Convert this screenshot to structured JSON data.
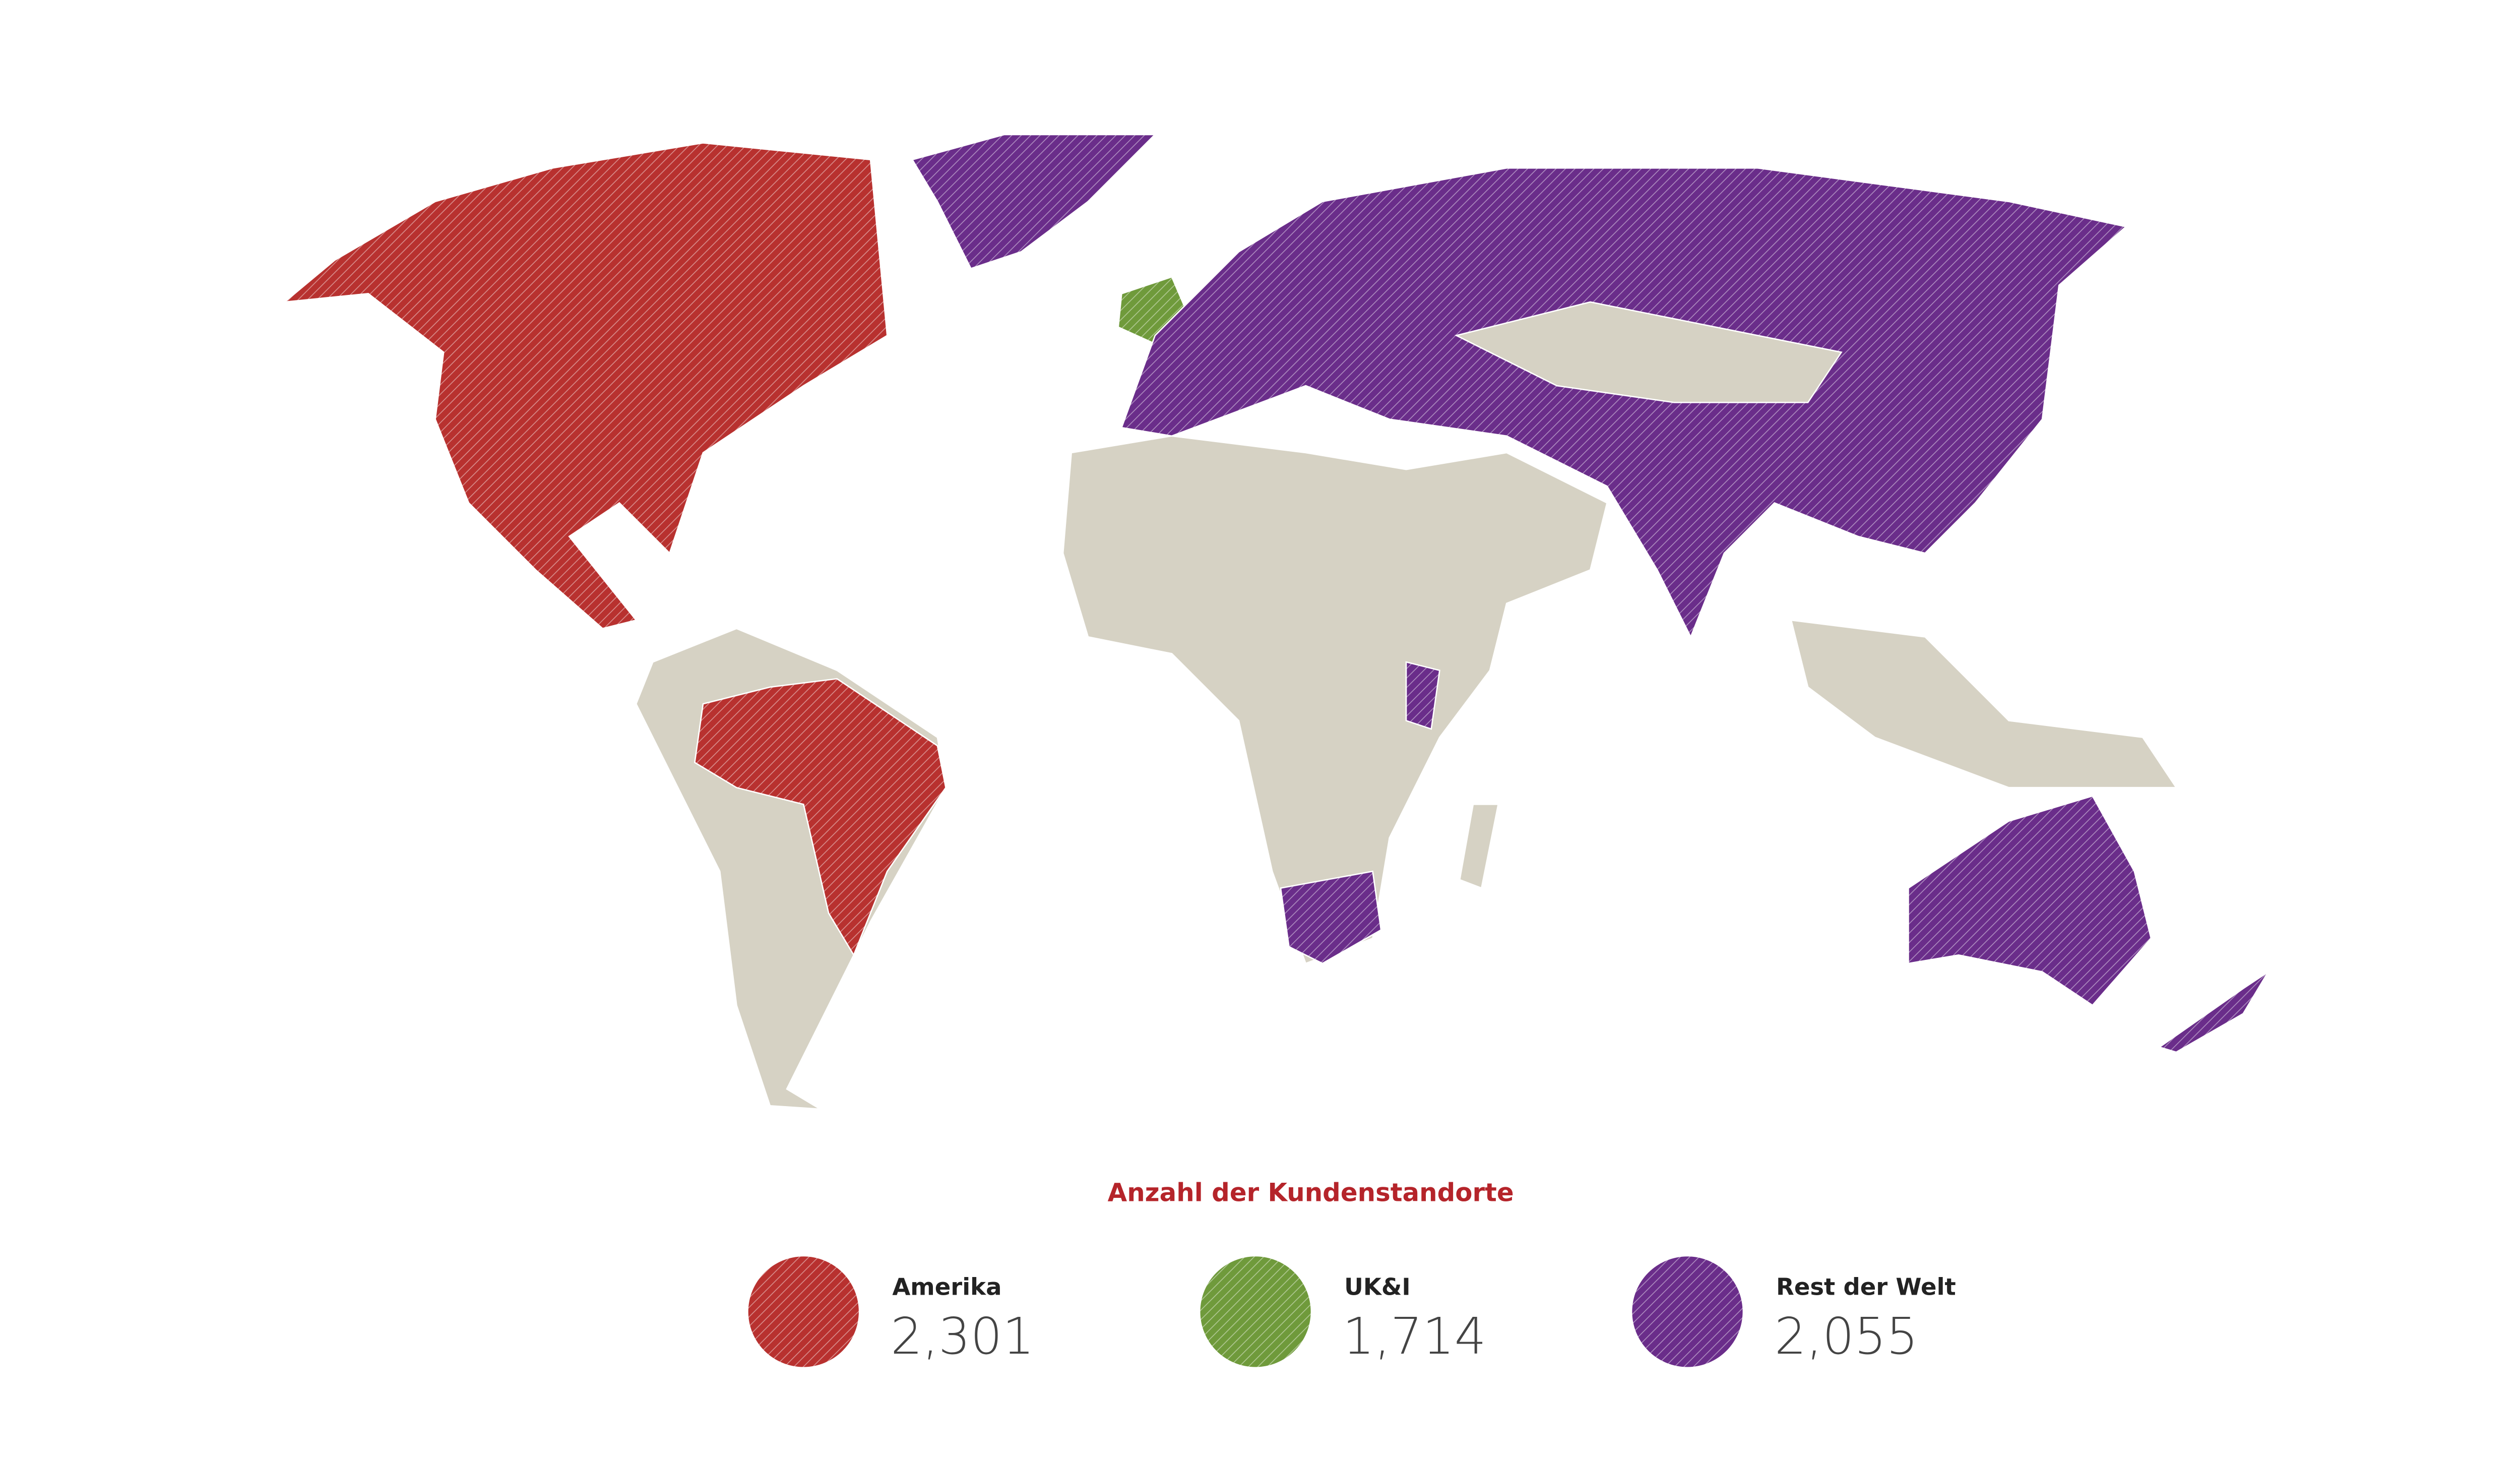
{
  "legend_title": "Anzahl der Kundenstandorte",
  "title_color": "#b5242a",
  "land_color": "#d6d2c4",
  "groups": [
    {
      "name": "Amerika",
      "value": "2,301",
      "color": "#b8312f"
    },
    {
      "name": "UK&I",
      "value": "1,714",
      "color": "#6f9a3b"
    },
    {
      "name": "Rest der Welt",
      "value": "2,055",
      "color": "#6a2d8a"
    }
  ]
}
